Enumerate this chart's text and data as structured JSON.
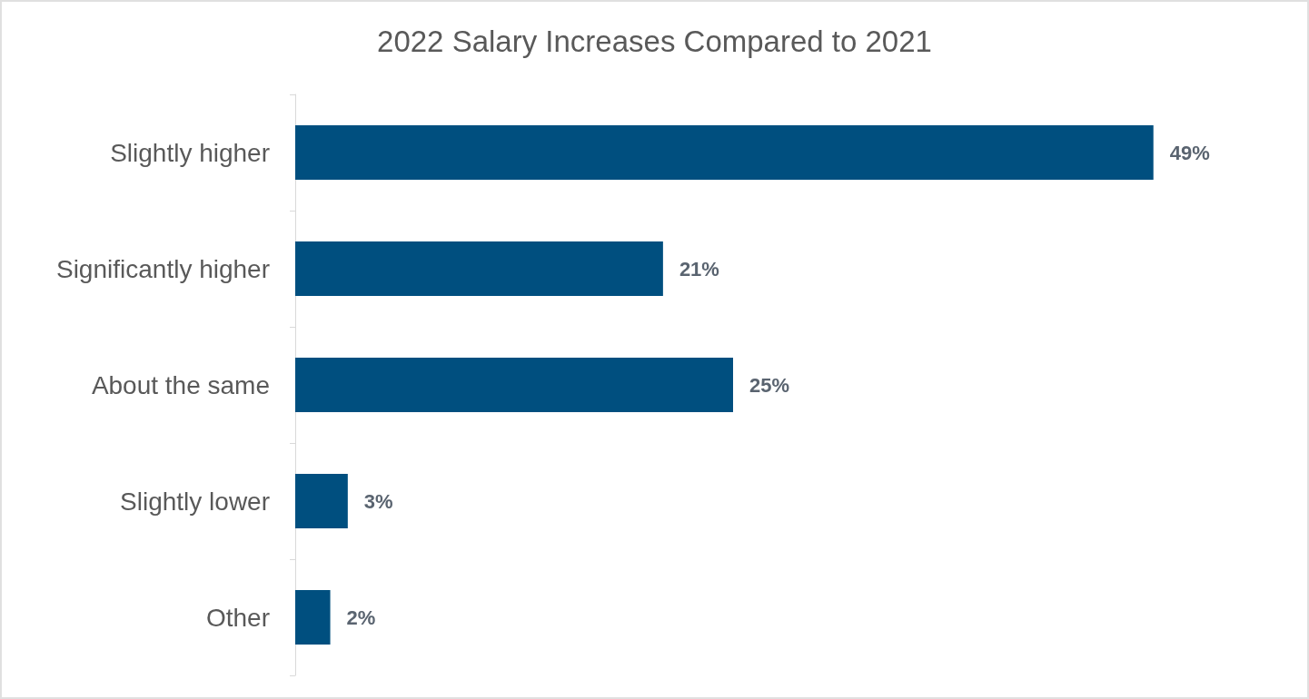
{
  "chart_data": {
    "type": "bar",
    "orientation": "horizontal",
    "title": "2022 Salary Increases Compared to 2021",
    "categories": [
      "Slightly higher",
      "Significantly higher",
      "About the same",
      "Slightly lower",
      "Other"
    ],
    "values": [
      49,
      21,
      25,
      3,
      2
    ],
    "value_labels": [
      "49%",
      "21%",
      "25%",
      "3%",
      "2%"
    ],
    "color": "#004f7f",
    "tick_labels": "y"
  }
}
